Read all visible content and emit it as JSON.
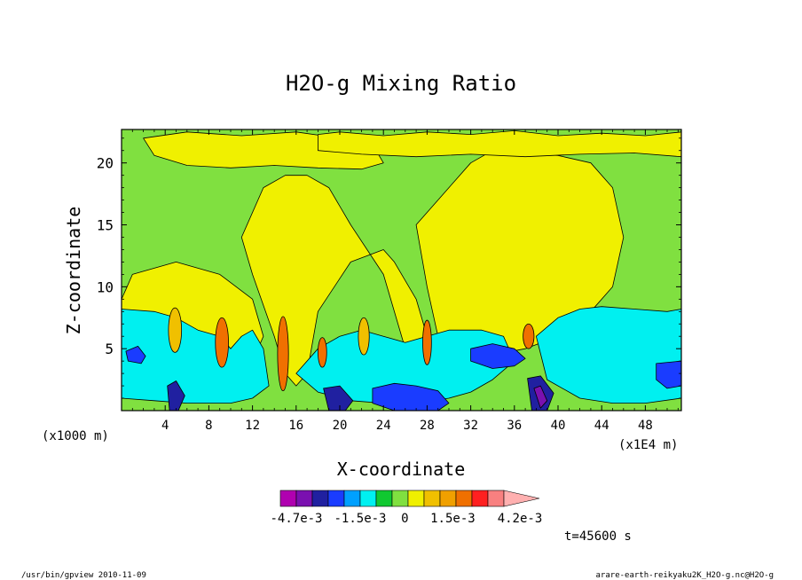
{
  "chart_data": {
    "type": "heatmap",
    "title": "H2O-g Mixing Ratio",
    "xlabel": "X-coordinate",
    "ylabel": "Z-coordinate",
    "x_unit_left": "(x1000 m)",
    "x_unit_right": "(x1E4 m)",
    "xlim": [
      0,
      51.3
    ],
    "ylim": [
      0,
      22.7
    ],
    "x_ticks": [
      "4",
      "8",
      "12",
      "16",
      "20",
      "24",
      "28",
      "32",
      "36",
      "40",
      "44",
      "48"
    ],
    "x_tick_values": [
      4,
      8,
      12,
      16,
      20,
      24,
      28,
      32,
      36,
      40,
      44,
      48
    ],
    "y_ticks": [
      "5",
      "10",
      "15",
      "20"
    ],
    "y_tick_values": [
      5,
      10,
      15,
      20
    ],
    "colorbar": {
      "colors": [
        "#b000b0",
        "#7a10b0",
        "#2020a0",
        "#1a3cff",
        "#00a0ff",
        "#00f0f0",
        "#10c830",
        "#80e040",
        "#f0f000",
        "#f0c000",
        "#f0a000",
        "#f07000",
        "#ff2020",
        "#f88080",
        "#ffb0b0"
      ],
      "labels": [
        "-4.7e-3",
        "-1.5e-3",
        "0",
        "1.5e-3",
        "4.2e-3"
      ]
    },
    "fields": {
      "background": "#80e040",
      "regions": [
        {
          "level": "0",
          "color": "#f0f000",
          "x": [
            0,
            0.5,
            1,
            3,
            5,
            9,
            12,
            13,
            12,
            10,
            8,
            6,
            3,
            1,
            0
          ],
          "z": [
            9,
            10,
            11,
            11.5,
            12,
            11,
            9,
            6,
            4,
            3,
            4,
            5.5,
            6,
            7,
            8
          ]
        },
        {
          "level": "0",
          "color": "#f0f000",
          "x": [
            2,
            6,
            11,
            16,
            20,
            23,
            24,
            22,
            18,
            14,
            10,
            6,
            3
          ],
          "z": [
            22,
            22.5,
            22.2,
            22.5,
            22,
            21.5,
            20,
            19.5,
            19.6,
            19.8,
            19.6,
            19.8,
            20.6
          ]
        },
        {
          "level": "0",
          "color": "#f0f000",
          "x": [
            11,
            12,
            14,
            15,
            16,
            17,
            18,
            21,
            24,
            25,
            27,
            28,
            29,
            27,
            24,
            21,
            19,
            17,
            15,
            13
          ],
          "z": [
            14,
            11,
            6,
            3,
            2,
            3,
            8,
            12,
            13,
            12,
            9,
            6,
            3,
            2,
            11,
            15,
            18,
            19,
            19,
            18
          ]
        },
        {
          "level": "0",
          "color": "#f0f000",
          "x": [
            27,
            28,
            29,
            31,
            34,
            37,
            40,
            43,
            45,
            46,
            45,
            43,
            40,
            37,
            34,
            32,
            30
          ],
          "z": [
            15,
            10,
            6,
            5,
            4.5,
            5,
            6,
            8,
            10,
            14,
            18,
            20,
            20.6,
            20.8,
            21,
            20,
            18
          ]
        },
        {
          "level": "0",
          "color": "#f0f000",
          "x": [
            18,
            20,
            24,
            28,
            32,
            36,
            40,
            44,
            48,
            51.3,
            51.3,
            47,
            42,
            37,
            32,
            27,
            22,
            18
          ],
          "z": [
            22.3,
            22.5,
            22.2,
            22.5,
            22.3,
            22.6,
            22.2,
            22.4,
            22.2,
            22.5,
            20.5,
            20.8,
            20.7,
            20.5,
            20.7,
            20.5,
            20.7,
            21.0
          ]
        },
        {
          "level": "-1.5e-3",
          "color": "#00f0f0",
          "x": [
            0,
            3,
            5,
            7,
            9,
            10,
            11,
            12,
            13,
            13.5,
            12,
            10,
            8,
            6,
            3,
            0
          ],
          "z": [
            8.2,
            8,
            7.5,
            6.5,
            6,
            5,
            6,
            6.5,
            5,
            2,
            1,
            0.6,
            0.6,
            0.6,
            0.8,
            1
          ]
        },
        {
          "level": "-1.5e-3",
          "color": "#00f0f0",
          "x": [
            16,
            18,
            20,
            22,
            24,
            26,
            28,
            30,
            33,
            35,
            36,
            34,
            32,
            30,
            27,
            24,
            21,
            18
          ],
          "z": [
            3,
            5,
            6,
            6.5,
            6,
            5.5,
            6,
            6.5,
            6.5,
            6,
            4,
            2.5,
            1.5,
            1,
            0.6,
            0.6,
            0.8,
            1.5
          ]
        },
        {
          "level": "-1.5e-3",
          "color": "#00f0f0",
          "x": [
            38,
            40,
            42,
            44,
            47,
            50,
            51.3,
            51.3,
            48,
            45,
            42,
            39
          ],
          "z": [
            6,
            7.5,
            8.2,
            8.4,
            8.2,
            8,
            8.2,
            1,
            0.6,
            0.6,
            1,
            2.5
          ]
        },
        {
          "level": "-3e-3",
          "color": "#1a3cff",
          "x": [
            0.4,
            1.5,
            2.2,
            1.8,
            0.6
          ],
          "z": [
            4.8,
            5.2,
            4.4,
            3.8,
            4
          ]
        },
        {
          "level": "-3e-3",
          "color": "#1a3cff",
          "x": [
            32,
            34,
            36,
            37,
            36,
            34,
            32
          ],
          "z": [
            5,
            5.4,
            5,
            4.2,
            3.6,
            3.4,
            4
          ]
        },
        {
          "level": "-3e-3",
          "color": "#1a3cff",
          "x": [
            49,
            51.3,
            51.3,
            50,
            49
          ],
          "z": [
            3.8,
            4,
            2,
            1.8,
            2.5
          ]
        },
        {
          "level": "-3e-3",
          "color": "#1a3cff",
          "x": [
            23,
            25,
            27,
            29,
            30,
            29,
            27,
            25,
            23
          ],
          "z": [
            1.8,
            2.2,
            2,
            1.6,
            0.6,
            0,
            0,
            0,
            0.6
          ]
        },
        {
          "level": "-4.7e-3",
          "color": "#2020a0",
          "x": [
            4.2,
            5,
            5.8,
            5.2,
            4.4
          ],
          "z": [
            2,
            2.4,
            1.2,
            0,
            0
          ]
        },
        {
          "level": "-4.7e-3",
          "color": "#2020a0",
          "x": [
            18.5,
            20,
            21.2,
            20.5,
            19
          ],
          "z": [
            1.8,
            2,
            0.8,
            0,
            0
          ]
        },
        {
          "level": "-4.7e-3",
          "color": "#2020a0",
          "x": [
            37.2,
            38.4,
            39.6,
            39,
            37.6
          ],
          "z": [
            2.6,
            2.8,
            1.4,
            0,
            0
          ]
        },
        {
          "level": "-4.7e-3",
          "color": "#7a10b0",
          "x": [
            37.8,
            38.4,
            39,
            38.4
          ],
          "z": [
            1.8,
            2,
            0.8,
            0.2
          ]
        }
      ],
      "peaks": [
        {
          "level": "4.2e-3",
          "color": "#f07000",
          "cx": 9.2,
          "cz": 5.5,
          "rx": 0.6,
          "rz": 2.0
        },
        {
          "level": "4.2e-3",
          "color": "#f07000",
          "cx": 14.8,
          "cz": 4.6,
          "rx": 0.5,
          "rz": 3.0
        },
        {
          "level": "4.2e-3",
          "color": "#f07000",
          "cx": 28.0,
          "cz": 5.5,
          "rx": 0.4,
          "rz": 1.8
        },
        {
          "level": "4.2e-3",
          "color": "#f07000",
          "cx": 37.3,
          "cz": 6.0,
          "rx": 0.5,
          "rz": 1.0
        },
        {
          "level": "4.2e-3",
          "color": "#f07000",
          "cx": 18.4,
          "cz": 4.7,
          "rx": 0.4,
          "rz": 1.2
        },
        {
          "level": "1.5e-3",
          "color": "#f0c000",
          "cx": 4.9,
          "cz": 6.5,
          "rx": 0.6,
          "rz": 1.8
        },
        {
          "level": "1.5e-3",
          "color": "#f0c000",
          "cx": 22.2,
          "cz": 6.0,
          "rx": 0.5,
          "rz": 1.5
        }
      ]
    },
    "time_label": "t=45600 s"
  },
  "footer": {
    "left": "/usr/bin/gpview  2010-11-09",
    "right": "arare-earth-reikyaku2K_H2O-g.nc@H2O-g"
  }
}
